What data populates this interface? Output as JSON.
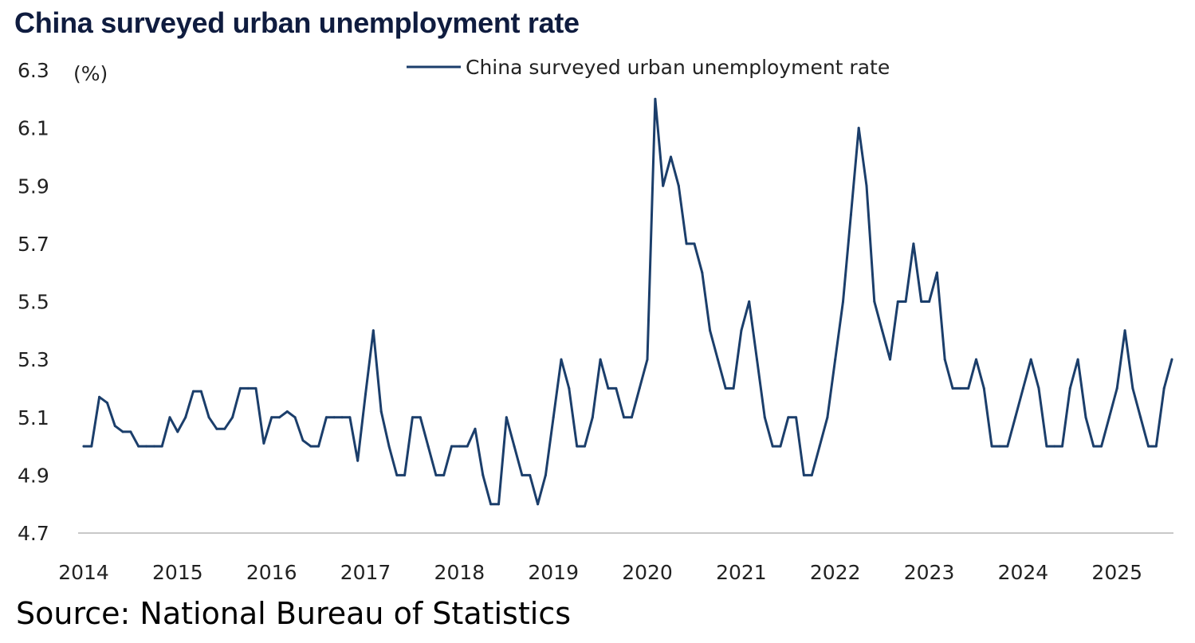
{
  "title": "China surveyed urban unemployment rate",
  "source": "Source: National Bureau of Statistics",
  "colors": {
    "title": "#0f1c3f",
    "line": "#1b3e6b",
    "axis": "#c8c8c8"
  },
  "chart_data": {
    "type": "line",
    "title": "China surveyed urban unemployment rate",
    "ylabel": "(%)",
    "xlabel": "",
    "ylim": [
      4.7,
      6.3
    ],
    "yticks": [
      "6.3",
      "6.1",
      "5.9",
      "5.7",
      "5.5",
      "5.3",
      "5.1",
      "4.9",
      "4.7"
    ],
    "xticks": [
      "2014",
      "2015",
      "2016",
      "2017",
      "2018",
      "2019",
      "2020",
      "2021",
      "2022",
      "2023",
      "2024",
      "2025"
    ],
    "grid": false,
    "legend_position": "top-center",
    "x": [
      "2014-01",
      "2014-02",
      "2014-03",
      "2014-04",
      "2014-05",
      "2014-06",
      "2014-07",
      "2014-08",
      "2014-09",
      "2014-10",
      "2014-11",
      "2014-12",
      "2015-01",
      "2015-02",
      "2015-03",
      "2015-04",
      "2015-05",
      "2015-06",
      "2015-07",
      "2015-08",
      "2015-09",
      "2015-10",
      "2015-11",
      "2015-12",
      "2016-01",
      "2016-02",
      "2016-03",
      "2016-04",
      "2016-05",
      "2016-06",
      "2016-07",
      "2016-08",
      "2016-09",
      "2016-10",
      "2016-11",
      "2016-12",
      "2017-01",
      "2017-02",
      "2017-03",
      "2017-04",
      "2017-05",
      "2017-06",
      "2017-07",
      "2017-08",
      "2017-09",
      "2017-10",
      "2017-11",
      "2017-12",
      "2018-01",
      "2018-02",
      "2018-03",
      "2018-04",
      "2018-05",
      "2018-06",
      "2018-07",
      "2018-08",
      "2018-09",
      "2018-10",
      "2018-11",
      "2018-12",
      "2019-01",
      "2019-02",
      "2019-03",
      "2019-04",
      "2019-05",
      "2019-06",
      "2019-07",
      "2019-08",
      "2019-09",
      "2019-10",
      "2019-11",
      "2019-12",
      "2020-01",
      "2020-02",
      "2020-03",
      "2020-04",
      "2020-05",
      "2020-06",
      "2020-07",
      "2020-08",
      "2020-09",
      "2020-10",
      "2020-11",
      "2020-12",
      "2021-01",
      "2021-02",
      "2021-03",
      "2021-04",
      "2021-05",
      "2021-06",
      "2021-07",
      "2021-08",
      "2021-09",
      "2021-10",
      "2021-11",
      "2021-12",
      "2022-01",
      "2022-02",
      "2022-03",
      "2022-04",
      "2022-05",
      "2022-06",
      "2022-07",
      "2022-08",
      "2022-09",
      "2022-10",
      "2022-11",
      "2022-12",
      "2023-01",
      "2023-02",
      "2023-03",
      "2023-04",
      "2023-05",
      "2023-06",
      "2023-07",
      "2023-08",
      "2023-09",
      "2023-10",
      "2023-11",
      "2023-12",
      "2024-01",
      "2024-02",
      "2024-03",
      "2024-04",
      "2024-05",
      "2024-06",
      "2024-07",
      "2024-08",
      "2024-09",
      "2024-10",
      "2024-11",
      "2024-12",
      "2025-01",
      "2025-02",
      "2025-03",
      "2025-04",
      "2025-05",
      "2025-06",
      "2025-07",
      "2025-08"
    ],
    "series": [
      {
        "name": "China surveyed urban unemployment rate",
        "values": [
          5.0,
          5.0,
          5.17,
          5.15,
          5.07,
          5.05,
          5.05,
          5.0,
          5.0,
          5.0,
          5.0,
          5.1,
          5.05,
          5.1,
          5.19,
          5.19,
          5.1,
          5.06,
          5.06,
          5.1,
          5.2,
          5.2,
          5.2,
          5.01,
          5.1,
          5.1,
          5.12,
          5.1,
          5.02,
          5.0,
          5.0,
          5.1,
          5.1,
          5.1,
          5.1,
          4.95,
          5.18,
          5.4,
          5.12,
          5.0,
          4.9,
          4.9,
          5.1,
          5.1,
          5.0,
          4.9,
          4.9,
          5.0,
          5.0,
          5.0,
          5.06,
          4.9,
          4.8,
          4.8,
          5.1,
          5.0,
          4.9,
          4.9,
          4.8,
          4.9,
          5.1,
          5.3,
          5.2,
          5.0,
          5.0,
          5.1,
          5.3,
          5.2,
          5.2,
          5.1,
          5.1,
          5.2,
          5.3,
          6.2,
          5.9,
          6.0,
          5.9,
          5.7,
          5.7,
          5.6,
          5.4,
          5.3,
          5.2,
          5.2,
          5.4,
          5.5,
          5.3,
          5.1,
          5.0,
          5.0,
          5.1,
          5.1,
          4.9,
          4.9,
          5.0,
          5.1,
          5.3,
          5.5,
          5.8,
          6.1,
          5.9,
          5.5,
          5.4,
          5.3,
          5.5,
          5.5,
          5.7,
          5.5,
          5.5,
          5.6,
          5.3,
          5.2,
          5.2,
          5.2,
          5.3,
          5.2,
          5.0,
          5.0,
          5.0,
          5.1,
          5.2,
          5.3,
          5.2,
          5.0,
          5.0,
          5.0,
          5.2,
          5.3,
          5.1,
          5.0,
          5.0,
          5.1,
          5.2,
          5.4,
          5.2,
          5.1,
          5.0,
          5.0,
          5.2,
          5.3
        ]
      }
    ]
  }
}
